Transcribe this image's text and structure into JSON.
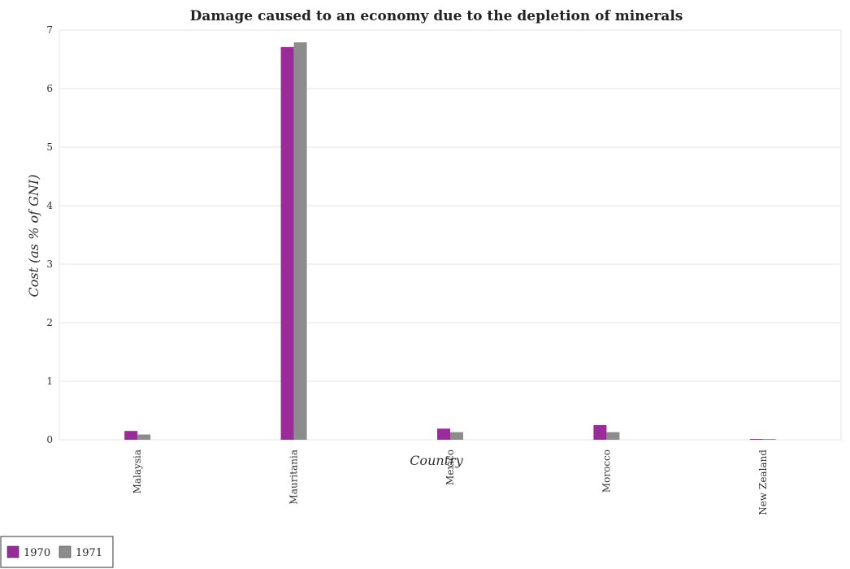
{
  "chart_data": {
    "type": "bar",
    "title": "Damage caused to an economy due to the depletion of minerals",
    "xlabel": "Country",
    "ylabel": "Cost (as % of GNI)",
    "categories": [
      "Malaysia",
      "Mauritania",
      "Mexico",
      "Morocco",
      "New Zealand"
    ],
    "series": [
      {
        "name": "1970",
        "color": "#9b2a9b",
        "values": [
          0.15,
          6.71,
          0.19,
          0.25,
          0.005
        ]
      },
      {
        "name": "1971",
        "color": "#8c8c8c",
        "values": [
          0.09,
          6.79,
          0.13,
          0.13,
          0.007
        ]
      }
    ],
    "ylim": [
      0,
      7
    ],
    "yticks": [
      0,
      1,
      2,
      3,
      4,
      5,
      6,
      7
    ],
    "grid": true,
    "legend_position": "bottom-left"
  }
}
